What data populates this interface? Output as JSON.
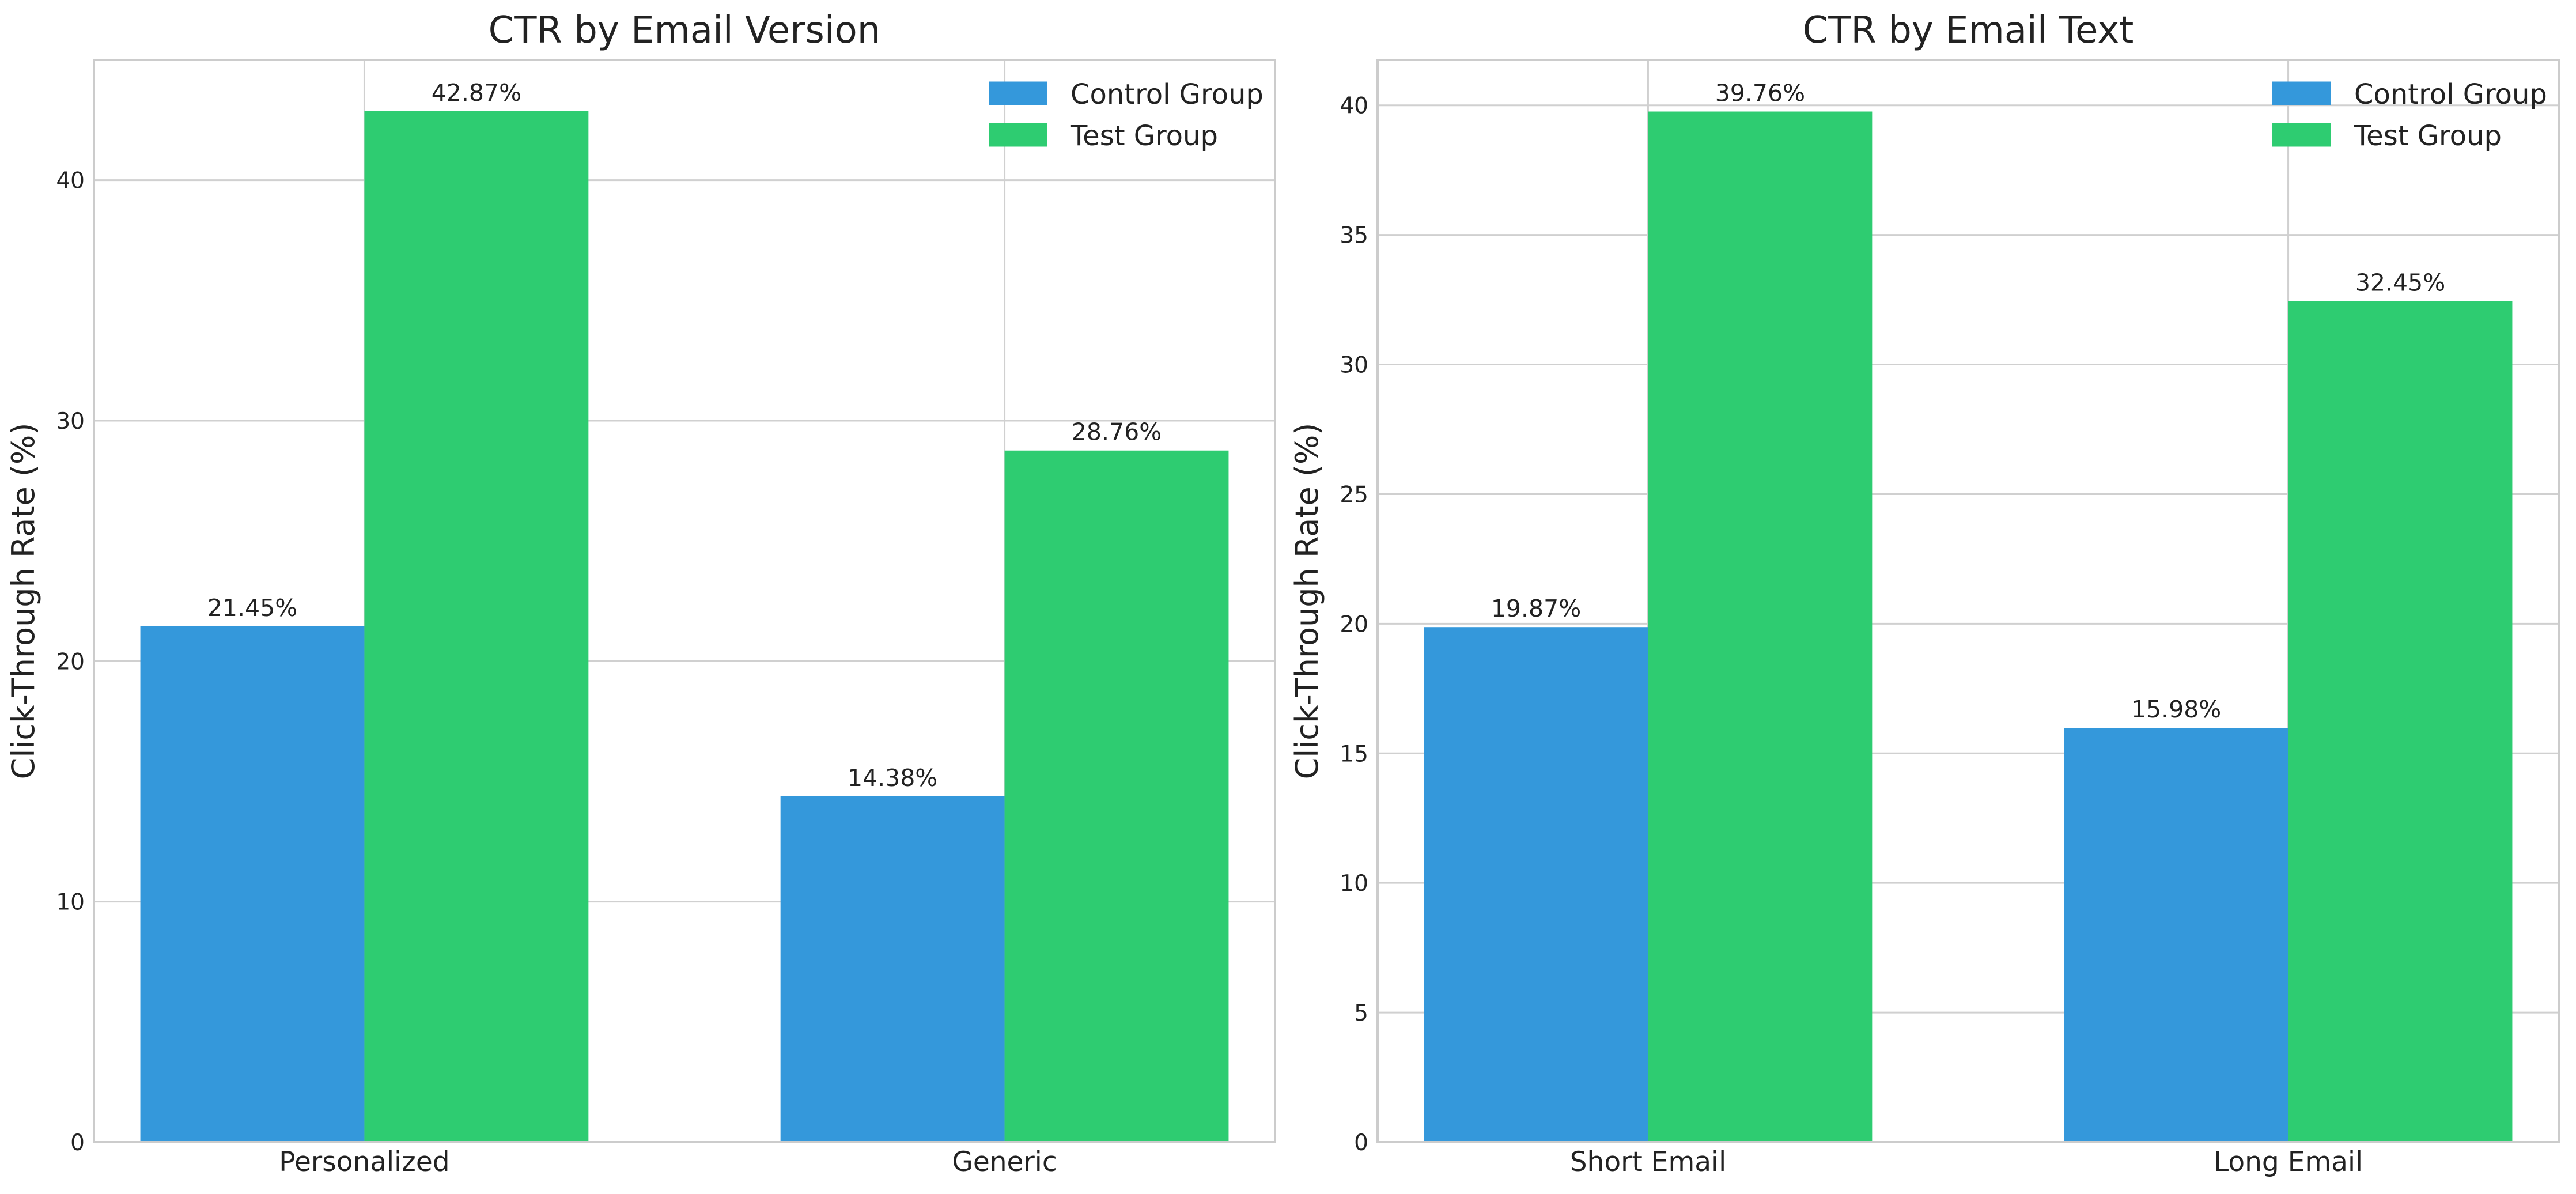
{
  "colors": {
    "control": "#3498db",
    "test": "#2ecc71",
    "grid": "#d0d0d0",
    "spine": "#cccccc",
    "text": "#222222",
    "background": "#ffffff"
  },
  "chart_data": [
    {
      "type": "bar",
      "title": "CTR by Email Version",
      "xlabel": "",
      "ylabel": "Click-Through Rate (%)",
      "categories": [
        "Personalized",
        "Generic"
      ],
      "series": [
        {
          "name": "Control Group",
          "values": [
            21.45,
            14.38
          ],
          "value_labels": [
            "21.45%",
            "14.38%"
          ]
        },
        {
          "name": "Test Group",
          "values": [
            42.87,
            28.76
          ],
          "value_labels": [
            "42.87%",
            "28.76%"
          ]
        }
      ],
      "ylim": [
        0,
        45
      ],
      "yticks": [
        0,
        10,
        20,
        30,
        40
      ],
      "grid": true,
      "legend_position": "top-right"
    },
    {
      "type": "bar",
      "title": "CTR by Email Text",
      "xlabel": "",
      "ylabel": "Click-Through Rate (%)",
      "categories": [
        "Short Email",
        "Long Email"
      ],
      "series": [
        {
          "name": "Control Group",
          "values": [
            19.87,
            15.98
          ],
          "value_labels": [
            "19.87%",
            "15.98%"
          ]
        },
        {
          "name": "Test Group",
          "values": [
            39.76,
            32.45
          ],
          "value_labels": [
            "39.76%",
            "32.45%"
          ]
        }
      ],
      "ylim": [
        0,
        41.75
      ],
      "yticks": [
        0,
        5,
        10,
        15,
        20,
        25,
        30,
        35,
        40
      ],
      "grid": true,
      "legend_position": "top-right"
    }
  ]
}
